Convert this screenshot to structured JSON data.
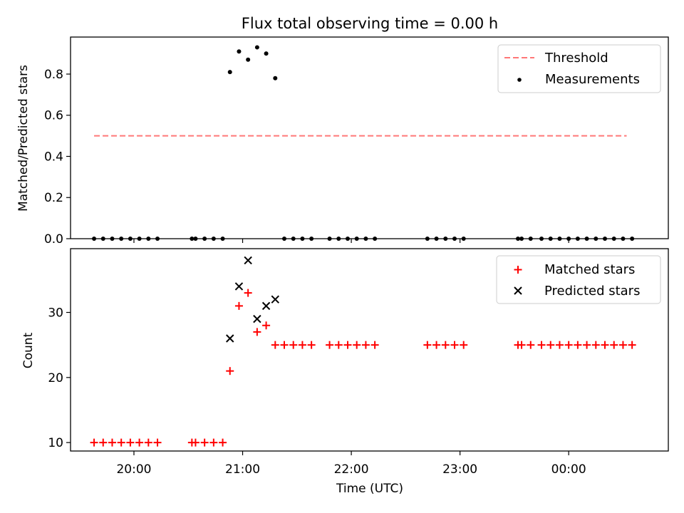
{
  "chart_data": [
    {
      "type": "scatter",
      "title": "Flux total observing time = 0.00 h",
      "xlabel": "",
      "ylabel": "Matched/Predicted stars",
      "ylim": [
        0,
        0.98
      ],
      "yticks": [
        0.0,
        0.2,
        0.4,
        0.6,
        0.8
      ],
      "ytick_labels": [
        "0.0",
        "0.2",
        "0.4",
        "0.6",
        "0.8"
      ],
      "legend": {
        "placement": "top-right",
        "entries": [
          "Threshold",
          "Measurements"
        ]
      },
      "threshold": {
        "name": "Threshold",
        "value": 0.5,
        "x_start": "19:38",
        "x_end": "00:32",
        "color": "#ff7777"
      },
      "series": [
        {
          "name": "Measurements",
          "color": "#000000",
          "points": [
            [
              "19:38",
              0
            ],
            [
              "19:43",
              0
            ],
            [
              "19:48",
              0
            ],
            [
              "19:53",
              0
            ],
            [
              "19:58",
              0
            ],
            [
              "20:03",
              0
            ],
            [
              "20:08",
              0
            ],
            [
              "20:13",
              0
            ],
            [
              "20:32",
              0
            ],
            [
              "20:34",
              0
            ],
            [
              "20:39",
              0
            ],
            [
              "20:44",
              0
            ],
            [
              "20:49",
              0
            ],
            [
              "20:53",
              0.81
            ],
            [
              "20:58",
              0.91
            ],
            [
              "21:03",
              0.87
            ],
            [
              "21:08",
              0.93
            ],
            [
              "21:13",
              0.9
            ],
            [
              "21:18",
              0.78
            ],
            [
              "21:23",
              0
            ],
            [
              "21:28",
              0
            ],
            [
              "21:33",
              0
            ],
            [
              "21:38",
              0
            ],
            [
              "21:48",
              0
            ],
            [
              "21:53",
              0
            ],
            [
              "21:58",
              0
            ],
            [
              "22:03",
              0
            ],
            [
              "22:08",
              0
            ],
            [
              "22:13",
              0
            ],
            [
              "22:42",
              0
            ],
            [
              "22:47",
              0
            ],
            [
              "22:52",
              0
            ],
            [
              "22:57",
              0
            ],
            [
              "23:02",
              0
            ],
            [
              "23:32",
              0
            ],
            [
              "23:34",
              0
            ],
            [
              "23:39",
              0
            ],
            [
              "23:45",
              0
            ],
            [
              "23:50",
              0
            ],
            [
              "23:55",
              0
            ],
            [
              "00:00",
              0
            ],
            [
              "00:05",
              0
            ],
            [
              "00:10",
              0
            ],
            [
              "00:15",
              0
            ],
            [
              "00:20",
              0
            ],
            [
              "00:25",
              0
            ],
            [
              "00:30",
              0
            ],
            [
              "00:35",
              0
            ]
          ]
        }
      ]
    },
    {
      "type": "scatter",
      "title": "",
      "xlabel": "Time (UTC)",
      "ylabel": "Count",
      "ylim": [
        8.7,
        39.8
      ],
      "yticks": [
        10,
        20,
        30
      ],
      "ytick_labels": [
        "10",
        "20",
        "30"
      ],
      "xticks": [
        "20:00",
        "21:00",
        "22:00",
        "23:00",
        "00:00"
      ],
      "xlim": [
        "19:25",
        "00:55"
      ],
      "legend": {
        "placement": "top-right",
        "entries": [
          "Matched stars",
          "Predicted stars"
        ]
      },
      "series": [
        {
          "name": "Matched stars",
          "marker": "plus",
          "color": "#ff0000",
          "points": [
            [
              "19:38",
              10
            ],
            [
              "19:43",
              10
            ],
            [
              "19:48",
              10
            ],
            [
              "19:53",
              10
            ],
            [
              "19:58",
              10
            ],
            [
              "20:03",
              10
            ],
            [
              "20:08",
              10
            ],
            [
              "20:13",
              10
            ],
            [
              "20:32",
              10
            ],
            [
              "20:34",
              10
            ],
            [
              "20:39",
              10
            ],
            [
              "20:44",
              10
            ],
            [
              "20:49",
              10
            ],
            [
              "20:53",
              21
            ],
            [
              "20:58",
              31
            ],
            [
              "21:03",
              33
            ],
            [
              "21:08",
              27
            ],
            [
              "21:13",
              28
            ],
            [
              "21:18",
              25
            ],
            [
              "21:23",
              25
            ],
            [
              "21:28",
              25
            ],
            [
              "21:33",
              25
            ],
            [
              "21:38",
              25
            ],
            [
              "21:48",
              25
            ],
            [
              "21:53",
              25
            ],
            [
              "21:58",
              25
            ],
            [
              "22:03",
              25
            ],
            [
              "22:08",
              25
            ],
            [
              "22:13",
              25
            ],
            [
              "22:42",
              25
            ],
            [
              "22:47",
              25
            ],
            [
              "22:52",
              25
            ],
            [
              "22:57",
              25
            ],
            [
              "23:02",
              25
            ],
            [
              "23:32",
              25
            ],
            [
              "23:34",
              25
            ],
            [
              "23:39",
              25
            ],
            [
              "23:45",
              25
            ],
            [
              "23:50",
              25
            ],
            [
              "23:55",
              25
            ],
            [
              "00:00",
              25
            ],
            [
              "00:05",
              25
            ],
            [
              "00:10",
              25
            ],
            [
              "00:15",
              25
            ],
            [
              "00:20",
              25
            ],
            [
              "00:25",
              25
            ],
            [
              "00:30",
              25
            ],
            [
              "00:35",
              25
            ]
          ]
        },
        {
          "name": "Predicted stars",
          "marker": "x",
          "color": "#000000",
          "points": [
            [
              "20:53",
              26
            ],
            [
              "20:58",
              34
            ],
            [
              "21:03",
              38
            ],
            [
              "21:08",
              29
            ],
            [
              "21:13",
              31
            ],
            [
              "21:18",
              32
            ]
          ]
        }
      ]
    }
  ]
}
